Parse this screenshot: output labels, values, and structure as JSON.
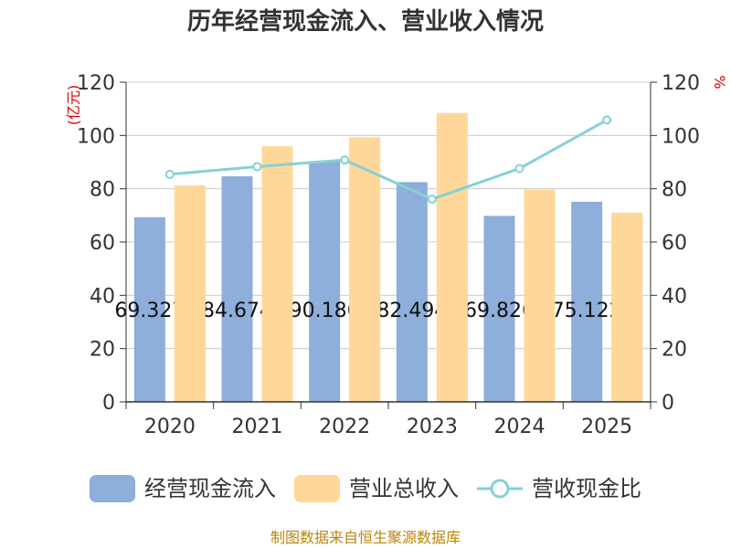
{
  "chart_data": {
    "type": "bar",
    "title": "历年经营现金流入、营业收入情况",
    "categories": [
      "2020",
      "2021",
      "2022",
      "2023",
      "2024",
      "2025"
    ],
    "y_left": {
      "label": "(亿元)",
      "min": 0,
      "max": 120,
      "ticks": [
        0,
        20,
        40,
        60,
        80,
        100,
        120
      ]
    },
    "y_right": {
      "label": "%",
      "min": 0,
      "max": 120,
      "ticks": [
        0,
        20,
        40,
        60,
        80,
        100,
        120
      ]
    },
    "series": [
      {
        "name": "经营现金流入",
        "type": "bar",
        "axis": "left",
        "values": [
          69.327,
          84.674,
          90.186,
          82.494,
          69.826,
          75.122
        ],
        "labels": [
          "69.327",
          "84.674",
          "90.186",
          "82.494",
          "69.826",
          "75.122"
        ]
      },
      {
        "name": "营业总收入",
        "type": "bar",
        "axis": "left",
        "values": [
          81.2,
          95.9,
          99.3,
          108.4,
          79.7,
          71.0
        ]
      },
      {
        "name": "营收现金比",
        "type": "line",
        "axis": "right",
        "values": [
          85.4,
          88.3,
          90.8,
          76.1,
          87.6,
          105.8
        ]
      }
    ],
    "colors": {
      "cash_inflow": "#8eaedb",
      "revenue": "#ffd899",
      "ratio": "#86d0d6",
      "axis": "#333333",
      "grid": "#cccccc",
      "unit": "#e00000",
      "title": "#333333"
    }
  },
  "footer": {
    "source": "制图数据来自恒生聚源数据库",
    "color": "#b8860b"
  }
}
